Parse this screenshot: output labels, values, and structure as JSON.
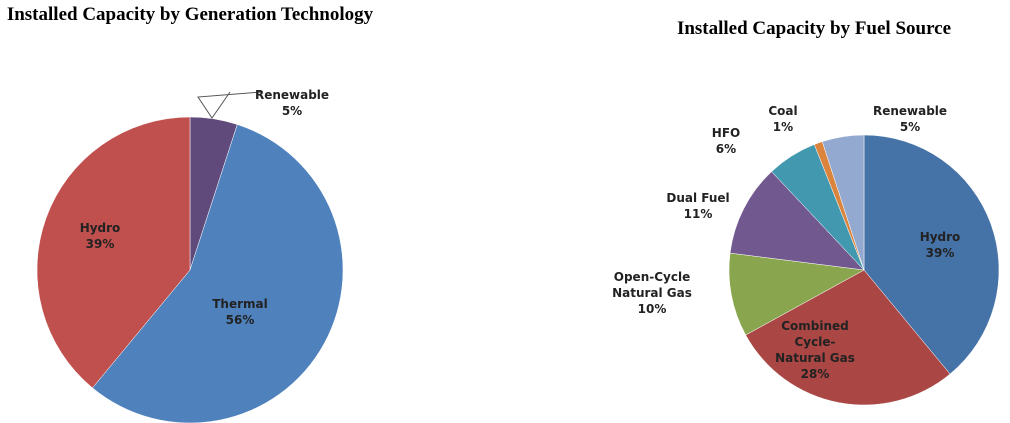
{
  "chart_data": [
    {
      "type": "pie",
      "title": "Installed Capacity by Generation Technology",
      "categories": [
        "Renewable",
        "Thermal",
        "Hydro"
      ],
      "values": [
        5,
        56,
        39
      ],
      "value_labels": [
        "5%",
        "56%",
        "39%"
      ],
      "colors": [
        "#604a7b",
        "#4f81bd",
        "#c0504d"
      ]
    },
    {
      "type": "pie",
      "title": "Installed Capacity by Fuel Source",
      "categories": [
        "Hydro",
        "Combined Cycle-Natural Gas",
        "Open-Cycle Natural Gas",
        "Dual Fuel",
        "HFO",
        "Coal",
        "Renewable"
      ],
      "values": [
        39,
        28,
        10,
        11,
        6,
        1,
        5
      ],
      "value_labels": [
        "39%",
        "28%",
        "10%",
        "11%",
        "6%",
        "1%",
        "5%"
      ],
      "colors": [
        "#4572a7",
        "#aa4643",
        "#89a54e",
        "#71588f",
        "#4198af",
        "#db843d",
        "#93a9cf"
      ]
    }
  ]
}
